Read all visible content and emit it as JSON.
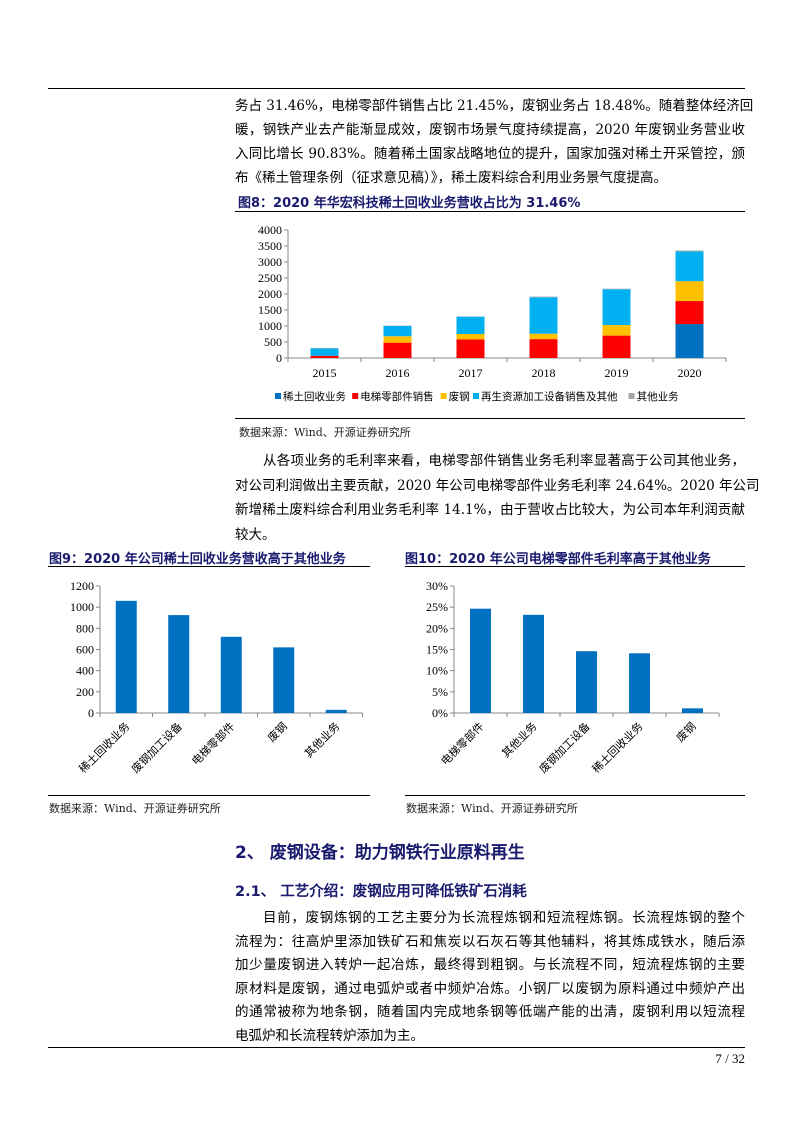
{
  "para1": [
    "务占 31.46%，电梯零部件销售占比 21.45%，废钢业务占 18.48%。随着整体经济回",
    "暖，钢铁产业去产能渐显成效，废钢市场景气度持续提高，2020 年废钢业务营业收",
    "入同比增长 90.83%。随着稀土国家战略地位的提升，国家加强对稀土开采管控，颁",
    "布《稀土管理条例（征求意见稿）》，稀土废料综合利用业务景气度提高。"
  ],
  "fig8": {
    "title": "图8：2020 年华宏科技稀土回收业务营收占比为 31.46%",
    "source": "数据来源：Wind、开源证券研究所"
  },
  "para2": [
    "从各项业务的毛利率来看，电梯零部件销售业务毛利率显著高于公司其他业务，",
    "对公司利润做出主要贡献，2020 年公司电梯零部件业务毛利率 24.64%。2020 年公司",
    "新增稀土废料综合利用业务毛利率 14.1%，由于营收占比较大，为公司本年利润贡献",
    "较大。"
  ],
  "fig9": {
    "title": "图9：2020 年公司稀土回收业务营收高于其他业务",
    "source": "数据来源：Wind、开源证券研究所"
  },
  "fig10": {
    "title": "图10：2020 年公司电梯零部件毛利率高于其他业务",
    "source": "数据来源：Wind、开源证券研究所"
  },
  "section2": {
    "title": "2、 废钢设备：助力钢铁行业原料再生"
  },
  "section21": {
    "title": "2.1、 工艺介绍：废钢应用可降低铁矿石消耗"
  },
  "para3": [
    "目前，废钢炼钢的工艺主要分为长流程炼钢和短流程炼钢。长流程炼钢的整个",
    "流程为：往高炉里添加铁矿石和焦炭以石灰石等其他辅料，将其炼成铁水，随后添",
    "加少量废钢进入转炉一起冶炼，最终得到粗钢。与长流程不同，短流程炼钢的主要",
    "原材料是废钢，通过电弧炉或者中频炉冶炼。小钢厂以废钢为原料通过中频炉产出",
    "的通常被称为地条钢，随着国内完成地条钢等低端产能的出清，废钢利用以短流程",
    "电弧炉和长流程转炉添加为主。"
  ],
  "footer": {
    "page": "7 / 32"
  },
  "chart_data": [
    {
      "type": "bar",
      "stacked": true,
      "title": "图8：2020 年华宏科技稀土回收业务营收占比为 31.46%",
      "categories": [
        "2015",
        "2016",
        "2017",
        "2018",
        "2019",
        "2020"
      ],
      "ylim": [
        0,
        4000
      ],
      "yticks": [
        0,
        500,
        1000,
        1500,
        2000,
        2500,
        3000,
        3500,
        4000
      ],
      "legend": "bottom",
      "series": [
        {
          "name": "稀土回收业务",
          "color": "#0070C0",
          "values": [
            0,
            0,
            0,
            0,
            0,
            1060
          ]
        },
        {
          "name": "电梯零部件销售",
          "color": "#FF0000",
          "values": [
            70,
            480,
            580,
            590,
            700,
            720
          ]
        },
        {
          "name": "废钢",
          "color": "#FFC000",
          "values": [
            0,
            200,
            170,
            170,
            330,
            620
          ]
        },
        {
          "name": "再生资源加工设备销售及其他",
          "color": "#00B0F0",
          "values": [
            230,
            320,
            540,
            1140,
            1120,
            930
          ]
        },
        {
          "name": "其他业务",
          "color": "#A6A6A6",
          "values": [
            10,
            10,
            10,
            20,
            15,
            30
          ]
        }
      ]
    },
    {
      "type": "bar",
      "title": "图9：2020 年公司稀土回收业务营收高于其他业务",
      "categories": [
        "稀土回收业务",
        "废钢加工设备",
        "电梯零部件",
        "废钢",
        "其他业务"
      ],
      "values": [
        1060,
        925,
        720,
        620,
        30
      ],
      "ylim": [
        0,
        1200
      ],
      "yticks": [
        0,
        200,
        400,
        600,
        800,
        1000,
        1200
      ],
      "color": "#0070C0"
    },
    {
      "type": "bar",
      "title": "图10：2020 年公司电梯零部件毛利率高于其他业务",
      "categories": [
        "电梯零部件",
        "其他业务",
        "废钢加工设备",
        "稀土回收业务",
        "废钢"
      ],
      "values": [
        24.64,
        23.2,
        14.6,
        14.1,
        1.1
      ],
      "ylim": [
        0,
        30
      ],
      "yticks": [
        0,
        5,
        10,
        15,
        20,
        25,
        30
      ],
      "tick_suffix": "%",
      "color": "#0070C0"
    }
  ]
}
